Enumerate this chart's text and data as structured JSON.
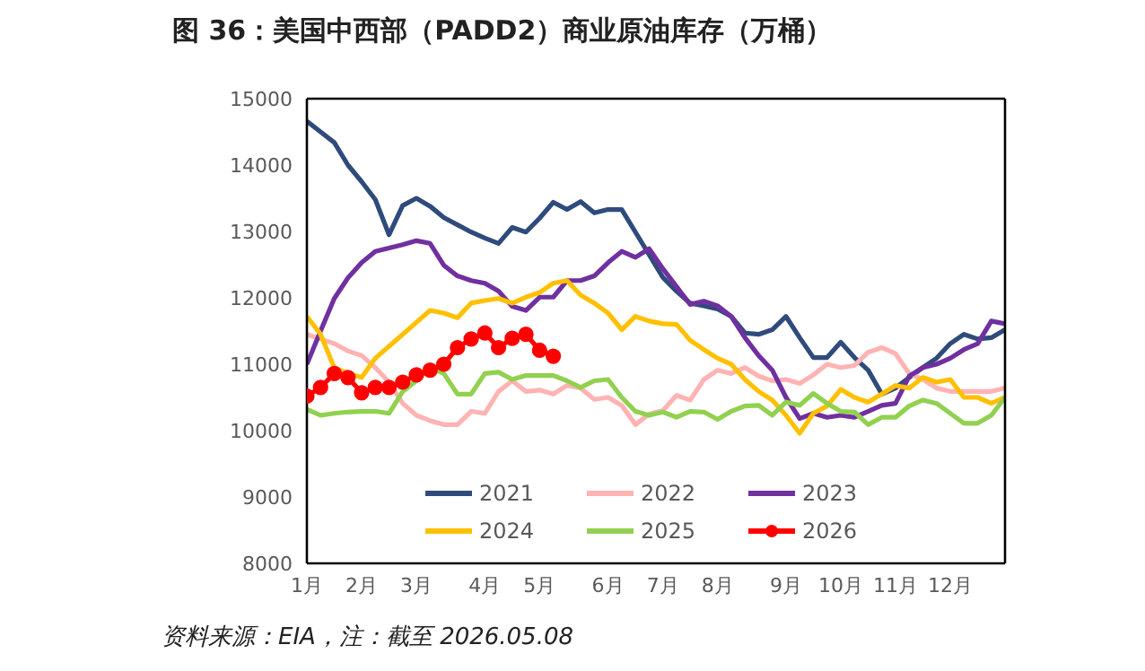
{
  "chart_data": {
    "type": "line",
    "title": "图 36：美国中西部（PADD2）商业原油库存（万桶）",
    "annotations": [
      "资料来源：EIA，注：截至 2026.05.08"
    ],
    "categories": [
      "1月",
      null,
      null,
      null,
      "2月",
      null,
      null,
      null,
      "3月",
      null,
      null,
      null,
      null,
      "4月",
      null,
      null,
      null,
      "5月",
      null,
      null,
      null,
      null,
      "6月",
      null,
      null,
      null,
      "7月",
      null,
      null,
      null,
      "8月",
      null,
      null,
      null,
      null,
      "9月",
      null,
      null,
      null,
      "10月",
      null,
      null,
      null,
      "11月",
      null,
      null,
      null,
      "12月",
      null,
      null,
      null,
      null
    ],
    "ylim": [
      8000,
      15000
    ],
    "yticks": [
      8000,
      9000,
      10000,
      11000,
      12000,
      13000,
      14000,
      15000
    ],
    "grid": false,
    "legend": "bottom",
    "line_style": "solid",
    "series": [
      {
        "name": "2021",
        "color": "#2f4b7c",
        "values": [
          14660,
          14500,
          14340,
          14000,
          13750,
          13480,
          12950,
          13390,
          13500,
          13380,
          13210,
          13100,
          12990,
          12900,
          12820,
          13060,
          12990,
          13200,
          13440,
          13330,
          13450,
          13280,
          13330,
          13330,
          12990,
          12650,
          12310,
          12100,
          11920,
          11880,
          11830,
          11720,
          11470,
          11450,
          11520,
          11720,
          11400,
          11100,
          11100,
          11330,
          11100,
          10910,
          10550,
          10640,
          10800,
          10950,
          11090,
          11310,
          11450,
          11380,
          11400,
          11520
        ]
      },
      {
        "name": "2022",
        "color": "#ffb3b3",
        "values": [
          11450,
          11380,
          11310,
          11200,
          11130,
          10950,
          10730,
          10410,
          10230,
          10150,
          10090,
          10090,
          10290,
          10260,
          10590,
          10750,
          10590,
          10610,
          10550,
          10680,
          10640,
          10470,
          10500,
          10380,
          10090,
          10250,
          10300,
          10530,
          10460,
          10770,
          10910,
          10860,
          10950,
          10820,
          10750,
          10770,
          10710,
          10840,
          11000,
          10950,
          10980,
          11180,
          11250,
          11160,
          10860,
          10770,
          10640,
          10590,
          10590,
          10590,
          10590,
          10640
        ]
      },
      {
        "name": "2023",
        "color": "#7030a0",
        "values": [
          11000,
          11500,
          11990,
          12300,
          12530,
          12700,
          12750,
          12800,
          12860,
          12820,
          12490,
          12330,
          12260,
          12220,
          12100,
          11870,
          11810,
          12010,
          12010,
          12260,
          12260,
          12330,
          12530,
          12700,
          12610,
          12740,
          12440,
          12170,
          11900,
          11950,
          11880,
          11720,
          11400,
          11130,
          10910,
          10500,
          10180,
          10260,
          10200,
          10230,
          10200,
          10290,
          10380,
          10410,
          10820,
          10950,
          11000,
          11090,
          11220,
          11310,
          11650,
          11610
        ]
      },
      {
        "name": "2024",
        "color": "#ffc000",
        "values": [
          11720,
          11450,
          10950,
          10860,
          10800,
          11090,
          11270,
          11450,
          11630,
          11810,
          11770,
          11700,
          11920,
          11960,
          11990,
          11920,
          12010,
          12080,
          12220,
          12260,
          12040,
          11920,
          11770,
          11520,
          11720,
          11650,
          11610,
          11600,
          11360,
          11220,
          11090,
          11000,
          10770,
          10590,
          10460,
          10230,
          9960,
          10260,
          10370,
          10620,
          10500,
          10430,
          10550,
          10680,
          10640,
          10800,
          10730,
          10770,
          10500,
          10500,
          10410,
          10500
        ]
      },
      {
        "name": "2025",
        "color": "#92d050",
        "values": [
          10320,
          10230,
          10260,
          10280,
          10290,
          10290,
          10260,
          10590,
          10750,
          10950,
          10860,
          10550,
          10550,
          10860,
          10880,
          10770,
          10830,
          10830,
          10830,
          10750,
          10650,
          10750,
          10770,
          10500,
          10290,
          10230,
          10280,
          10200,
          10290,
          10280,
          10170,
          10290,
          10370,
          10380,
          10230,
          10430,
          10380,
          10560,
          10410,
          10290,
          10280,
          10090,
          10200,
          10200,
          10370,
          10460,
          10410,
          10260,
          10110,
          10110,
          10230,
          10500
        ]
      },
      {
        "name": "2026",
        "color": "#ff0000",
        "marker": "circle",
        "values": [
          10520,
          10650,
          10860,
          10800,
          10570,
          10650,
          10650,
          10730,
          10840,
          10910,
          11000,
          11250,
          11380,
          11470,
          11250,
          11390,
          11450,
          11210,
          11120,
          null,
          null,
          null,
          null,
          null,
          null,
          null,
          null,
          null,
          null,
          null,
          null,
          null,
          null,
          null,
          null,
          null,
          null,
          null,
          null,
          null,
          null,
          null,
          null,
          null,
          null,
          null,
          null,
          null,
          null,
          null,
          null,
          null
        ]
      }
    ]
  }
}
